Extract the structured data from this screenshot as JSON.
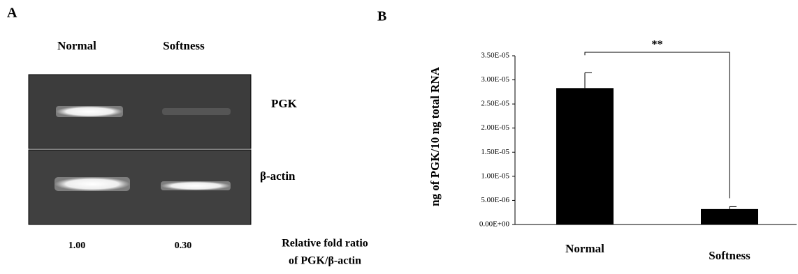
{
  "panel_a": {
    "label": "A",
    "lanes": [
      "Normal",
      "Softness"
    ],
    "genes": [
      "PGK",
      "β-actin"
    ],
    "ratios": [
      "1.00",
      "0.30"
    ],
    "ratio_caption": [
      "Relative fold ratio",
      "of PGK/β-actin"
    ]
  },
  "chart_data": {
    "type": "bar",
    "panel_label": "B",
    "y_label": "ng of PGK/10 ng total RNA",
    "categories": [
      "Normal",
      "Softness"
    ],
    "values": [
      2.83e-05,
      3.2e-06
    ],
    "errors": [
      3.2e-06,
      5e-07
    ],
    "color": "#000000",
    "annotation": "**",
    "ylim": [
      0,
      3.5e-05
    ],
    "yticks": [
      {
        "value": 0,
        "label": "0.00E+00"
      },
      {
        "value": 5e-06,
        "label": "5.00E-06"
      },
      {
        "value": 1e-05,
        "label": "1.00E-05"
      },
      {
        "value": 1.5e-05,
        "label": "1.50E-05"
      },
      {
        "value": 2e-05,
        "label": "2.00E-05"
      },
      {
        "value": 2.5e-05,
        "label": "2.50E-05"
      },
      {
        "value": 3e-05,
        "label": "3.00E-05"
      },
      {
        "value": 3.5e-05,
        "label": "3.50E-05"
      }
    ]
  }
}
